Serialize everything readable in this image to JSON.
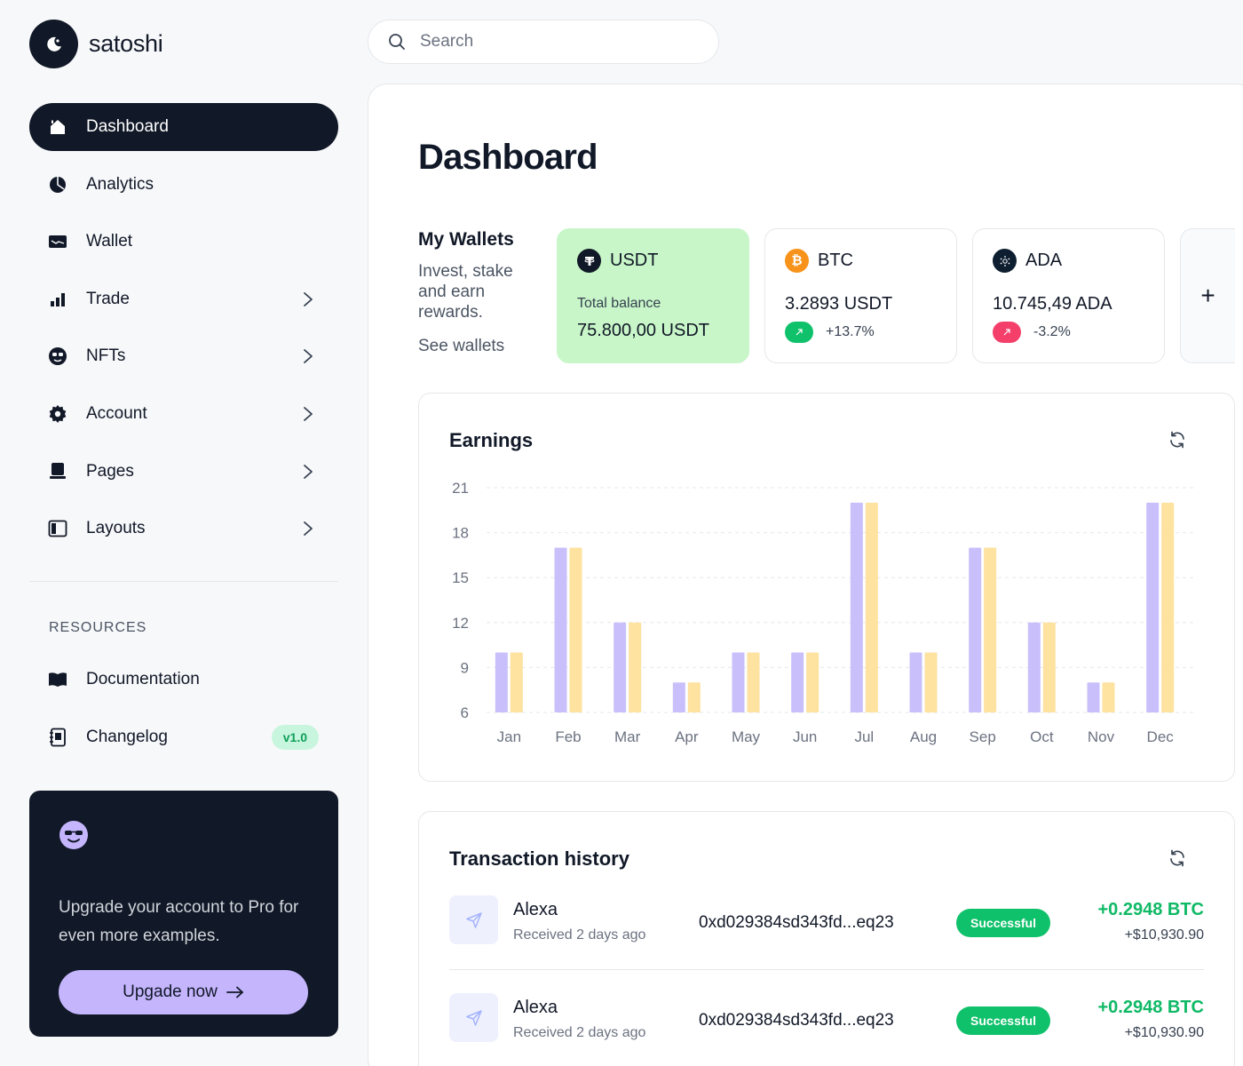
{
  "brand": {
    "name": "satoshi"
  },
  "search": {
    "placeholder": "Search"
  },
  "sidebar": {
    "items": [
      {
        "label": "Dashboard",
        "icon": "home-icon",
        "active": true,
        "chevron": false
      },
      {
        "label": "Analytics",
        "icon": "pie-chart-icon",
        "active": false,
        "chevron": false
      },
      {
        "label": "Wallet",
        "icon": "wallet-icon",
        "active": false,
        "chevron": false
      },
      {
        "label": "Trade",
        "icon": "bar-chart-icon",
        "active": false,
        "chevron": true
      },
      {
        "label": "NFTs",
        "icon": "smiley-icon",
        "active": false,
        "chevron": true
      },
      {
        "label": "Account",
        "icon": "gear-icon",
        "active": false,
        "chevron": true
      },
      {
        "label": "Pages",
        "icon": "pages-icon",
        "active": false,
        "chevron": true
      },
      {
        "label": "Layouts",
        "icon": "layout-icon",
        "active": false,
        "chevron": true
      }
    ],
    "resources_title": "RESOURCES",
    "resources": [
      {
        "label": "Documentation",
        "icon": "book-icon"
      },
      {
        "label": "Changelog",
        "icon": "changelog-icon",
        "badge": "v1.0"
      }
    ],
    "promo": {
      "text": "Upgrade your account to Pro for even more examples.",
      "button": "Upgade now"
    }
  },
  "main": {
    "title": "Dashboard",
    "wallets": {
      "title": "My Wallets",
      "description": "Invest, stake and earn rewards.",
      "link": "See wallets",
      "cards": [
        {
          "coin": "USDT",
          "color": "#111827",
          "label": "Total balance",
          "balance": "75.800,00 USDT"
        },
        {
          "coin": "BTC",
          "color": "#f7931a",
          "amount": "3.2893 USDT",
          "change": "+13.7%",
          "change_color": "#10c16b"
        },
        {
          "coin": "ADA",
          "color": "#0d1e30",
          "amount": "10.745,49 ADA",
          "change": "-3.2%",
          "change_color": "#f43f6b"
        }
      ],
      "add_label": "+"
    },
    "earnings": {
      "title": "Earnings"
    },
    "transactions": {
      "title": "Transaction history",
      "rows": [
        {
          "name": "Alexa",
          "sub": "Received 2 days ago",
          "hash": "0xd029384sd343fd...eq23",
          "status": "Successful",
          "amount": "+0.2948 BTC",
          "usd": "+$10,930.90"
        },
        {
          "name": "Alexa",
          "sub": "Received 2 days ago",
          "hash": "0xd029384sd343fd...eq23",
          "status": "Successful",
          "amount": "+0.2948 BTC",
          "usd": "+$10,930.90"
        }
      ]
    }
  },
  "chart_data": {
    "type": "bar",
    "title": "Earnings",
    "categories": [
      "Jan",
      "Feb",
      "Mar",
      "Apr",
      "May",
      "Jun",
      "Jul",
      "Aug",
      "Sep",
      "Oct",
      "Nov",
      "Dec"
    ],
    "series": [
      {
        "values": [
          10,
          17,
          12,
          8,
          10,
          10,
          20,
          10,
          17,
          12,
          8,
          20
        ],
        "color": "#c9c0fb"
      },
      {
        "values": [
          10,
          17,
          12,
          8,
          10,
          10,
          20,
          10,
          17,
          12,
          8,
          20
        ],
        "color": "#fde2a0"
      }
    ],
    "yticks": [
      21,
      18,
      15,
      12,
      9,
      6
    ],
    "ylim": [
      6,
      21
    ],
    "grid": true,
    "xlabel": "",
    "ylabel": ""
  }
}
